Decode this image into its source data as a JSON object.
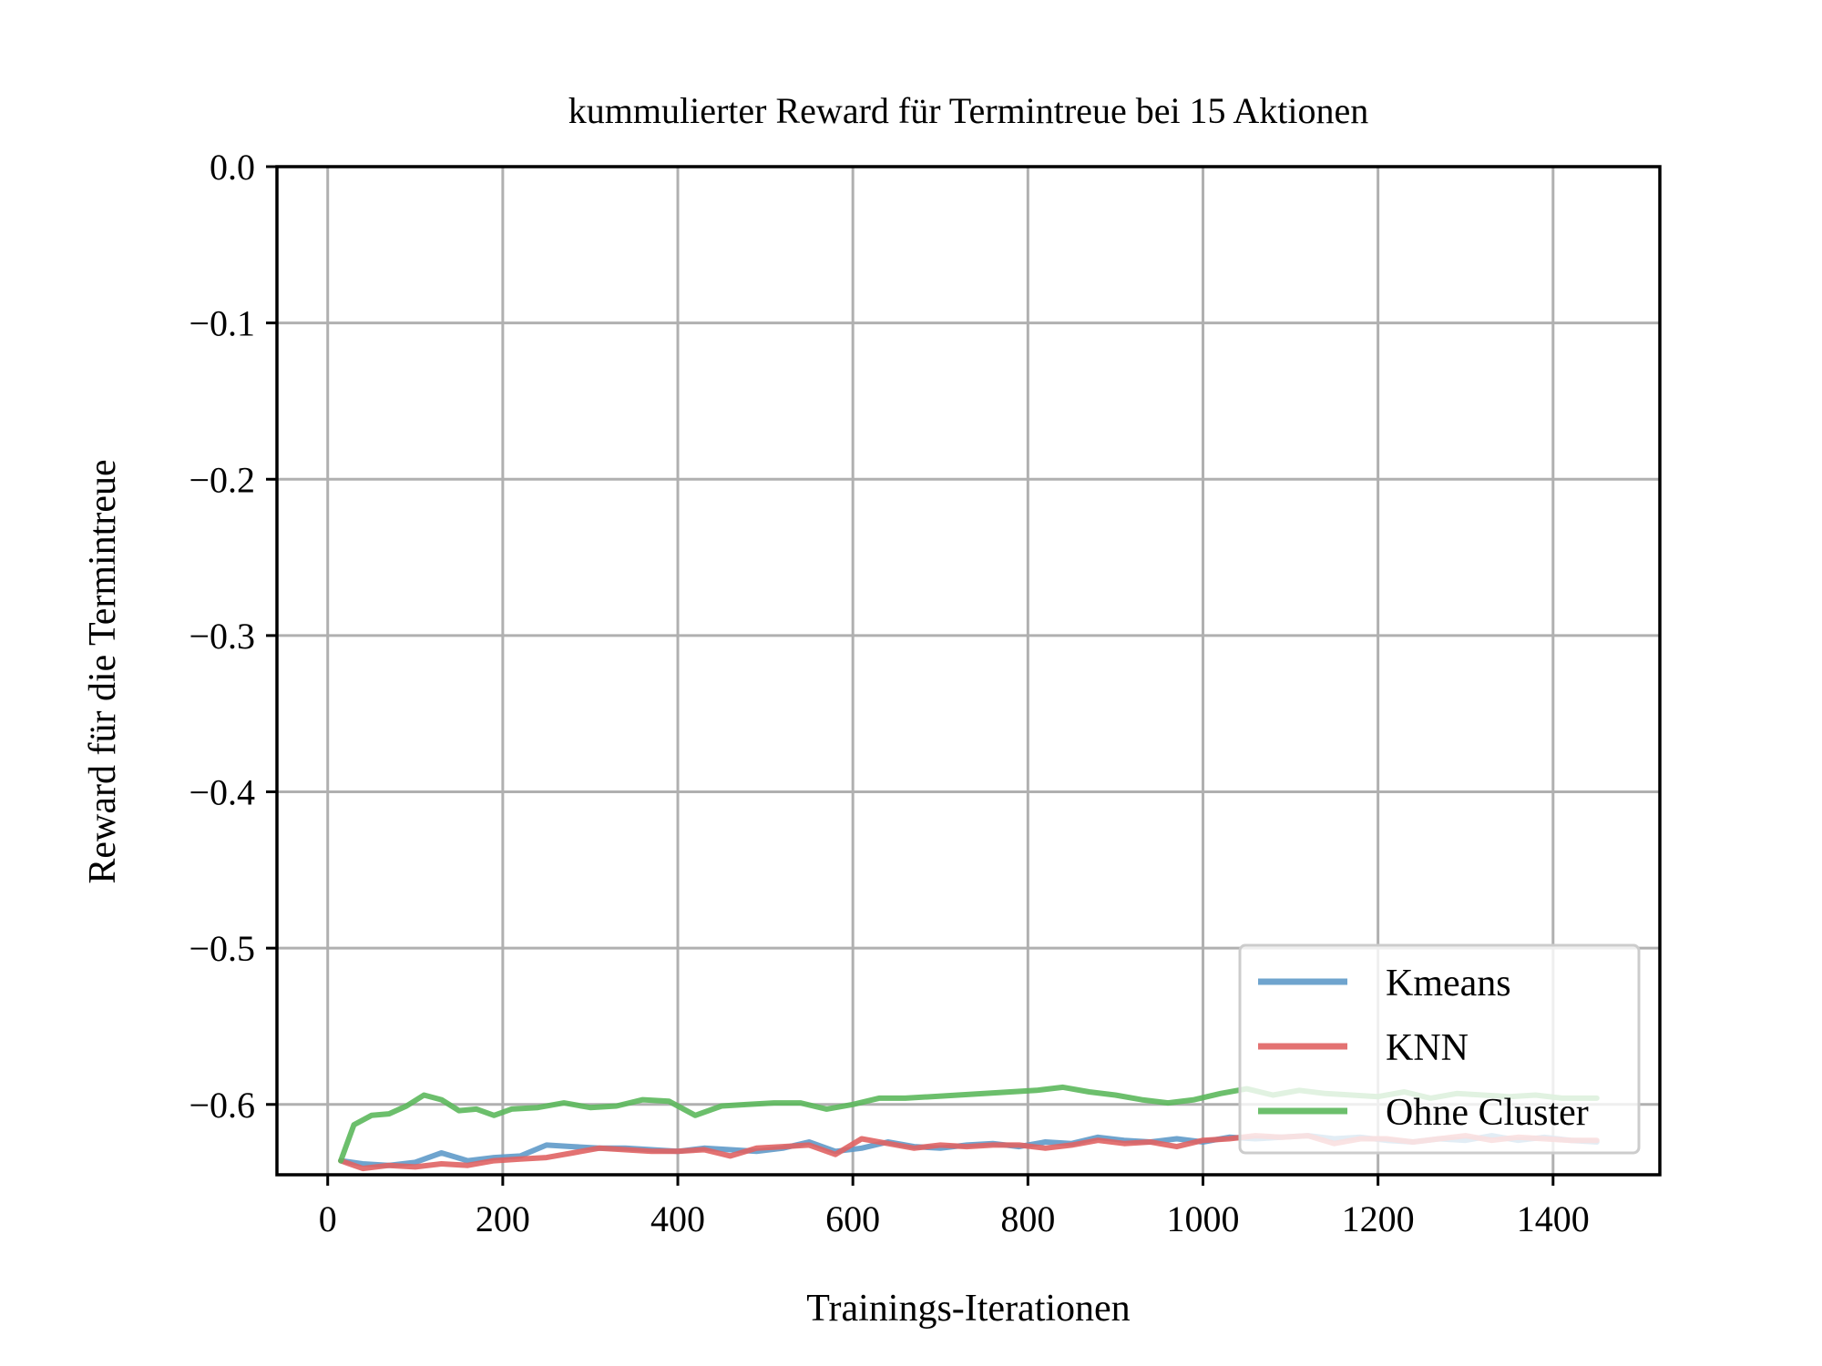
{
  "chart_data": {
    "type": "line",
    "title": "kummulierter Reward für Termintreue bei 15 Aktionen",
    "xlabel": "Trainings-Iterationen",
    "ylabel": "Reward für die Termintreue",
    "xlim": [
      -58,
      1522
    ],
    "ylim": [
      -0.645,
      0.0
    ],
    "xticks": [
      0,
      200,
      400,
      600,
      800,
      1000,
      1200,
      1400
    ],
    "yticks": [
      0.0,
      -0.1,
      -0.2,
      -0.3,
      -0.4,
      -0.5,
      -0.6
    ],
    "xtick_labels": [
      "0",
      "200",
      "400",
      "600",
      "800",
      "1000",
      "1200",
      "1400"
    ],
    "ytick_labels": [
      "0.0",
      "−0.1",
      "−0.2",
      "−0.3",
      "−0.4",
      "−0.5",
      "−0.6"
    ],
    "grid": true,
    "legend_position": "lower right",
    "series": [
      {
        "name": "Kmeans",
        "color": "#5f9ac9",
        "x": [
          15,
          40,
          70,
          100,
          130,
          160,
          190,
          220,
          250,
          280,
          310,
          340,
          370,
          400,
          430,
          460,
          490,
          520,
          550,
          580,
          610,
          640,
          670,
          700,
          730,
          760,
          790,
          820,
          850,
          880,
          910,
          940,
          970,
          1000,
          1030,
          1060,
          1090,
          1120,
          1150,
          1180,
          1210,
          1240,
          1270,
          1300,
          1330,
          1360,
          1390,
          1420,
          1450
        ],
        "y": [
          -0.636,
          -0.638,
          -0.639,
          -0.637,
          -0.631,
          -0.636,
          -0.634,
          -0.633,
          -0.626,
          -0.627,
          -0.628,
          -0.628,
          -0.629,
          -0.63,
          -0.628,
          -0.629,
          -0.63,
          -0.628,
          -0.624,
          -0.63,
          -0.628,
          -0.624,
          -0.627,
          -0.628,
          -0.626,
          -0.625,
          -0.627,
          -0.624,
          -0.625,
          -0.621,
          -0.623,
          -0.624,
          -0.622,
          -0.624,
          -0.621,
          -0.622,
          -0.621,
          -0.62,
          -0.622,
          -0.621,
          -0.623,
          -0.624,
          -0.622,
          -0.623,
          -0.62,
          -0.623,
          -0.621,
          -0.623,
          -0.624
        ]
      },
      {
        "name": "KNN",
        "color": "#e06363",
        "x": [
          15,
          40,
          70,
          100,
          130,
          160,
          190,
          220,
          250,
          280,
          310,
          340,
          370,
          400,
          430,
          460,
          490,
          520,
          550,
          580,
          610,
          640,
          670,
          700,
          730,
          760,
          790,
          820,
          850,
          880,
          910,
          940,
          970,
          1000,
          1030,
          1060,
          1090,
          1120,
          1150,
          1180,
          1210,
          1240,
          1270,
          1300,
          1330,
          1360,
          1390,
          1420,
          1450
        ],
        "y": [
          -0.636,
          -0.641,
          -0.639,
          -0.64,
          -0.638,
          -0.639,
          -0.636,
          -0.635,
          -0.634,
          -0.631,
          -0.628,
          -0.629,
          -0.63,
          -0.63,
          -0.629,
          -0.633,
          -0.628,
          -0.627,
          -0.626,
          -0.632,
          -0.622,
          -0.625,
          -0.628,
          -0.626,
          -0.627,
          -0.626,
          -0.626,
          -0.628,
          -0.626,
          -0.623,
          -0.625,
          -0.624,
          -0.627,
          -0.623,
          -0.622,
          -0.62,
          -0.621,
          -0.62,
          -0.625,
          -0.622,
          -0.622,
          -0.624,
          -0.622,
          -0.62,
          -0.623,
          -0.621,
          -0.622,
          -0.623,
          -0.623
        ]
      },
      {
        "name": "Ohne Cluster",
        "color": "#5cb85c",
        "x": [
          15,
          30,
          50,
          70,
          90,
          110,
          130,
          150,
          170,
          190,
          210,
          240,
          270,
          300,
          330,
          360,
          390,
          420,
          450,
          480,
          510,
          540,
          570,
          600,
          630,
          660,
          690,
          720,
          750,
          780,
          810,
          840,
          870,
          900,
          930,
          960,
          990,
          1020,
          1050,
          1080,
          1110,
          1140,
          1170,
          1200,
          1230,
          1260,
          1290,
          1320,
          1350,
          1380,
          1410,
          1450
        ],
        "y": [
          -0.636,
          -0.613,
          -0.607,
          -0.606,
          -0.601,
          -0.594,
          -0.597,
          -0.604,
          -0.603,
          -0.607,
          -0.603,
          -0.602,
          -0.599,
          -0.602,
          -0.601,
          -0.597,
          -0.598,
          -0.607,
          -0.601,
          -0.6,
          -0.599,
          -0.599,
          -0.603,
          -0.6,
          -0.596,
          -0.596,
          -0.595,
          -0.594,
          -0.593,
          -0.592,
          -0.591,
          -0.589,
          -0.592,
          -0.594,
          -0.597,
          -0.599,
          -0.597,
          -0.593,
          -0.59,
          -0.594,
          -0.591,
          -0.593,
          -0.594,
          -0.595,
          -0.592,
          -0.596,
          -0.593,
          -0.594,
          -0.595,
          -0.594,
          -0.596,
          -0.596
        ]
      }
    ]
  }
}
